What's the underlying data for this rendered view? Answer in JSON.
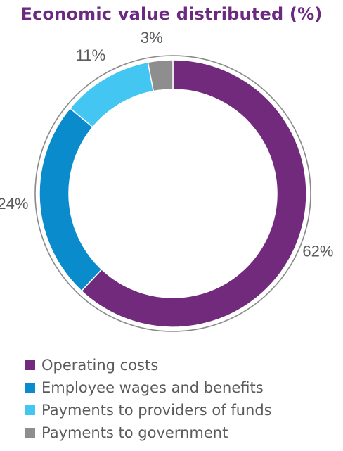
{
  "chart_data": {
    "type": "pie",
    "title": "Economic value distributed (%)",
    "series": [
      {
        "name": "Operating costs",
        "value": 62,
        "label": "62%",
        "color": "#722a7c"
      },
      {
        "name": "Employee wages and benefits",
        "value": 24,
        "label": "24%",
        "color": "#0a8ccc"
      },
      {
        "name": "Payments to providers of funds",
        "value": 11,
        "label": "11%",
        "color": "#43c6f2"
      },
      {
        "name": "Payments to government",
        "value": 3,
        "label": "3%",
        "color": "#8e8e8e"
      }
    ],
    "legend_position": "bottom-left"
  }
}
